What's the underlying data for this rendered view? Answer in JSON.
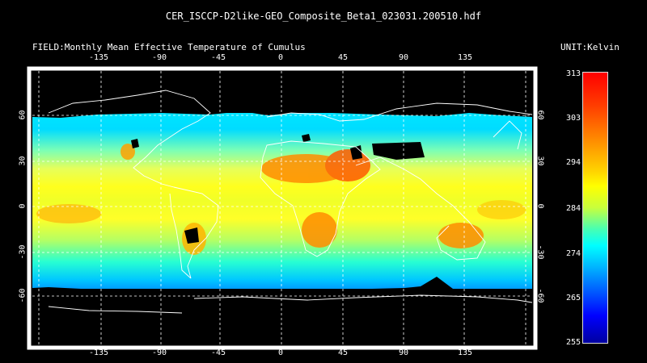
{
  "title": "CER_ISCCP-D2like-GEO_Composite_Beta1_023031.200510.hdf",
  "field_label": "FIELD:Monthly Mean Effective Temperature of Cumulus",
  "unit_label": "UNIT:Kelvin",
  "lon_ticks": [
    "-135",
    "-90",
    "-45",
    "0",
    "45",
    "90",
    "135"
  ],
  "lat_ticks": [
    "60",
    "30",
    "0",
    "-30",
    "-60"
  ],
  "colorbar_ticks": [
    "313",
    "303",
    "294",
    "284",
    "274",
    "265",
    "255"
  ],
  "colors": {
    "background": "#000000",
    "no_data": "#000000",
    "coastline": "#ffffff",
    "grid": "#ffffff"
  },
  "legend": {
    "type": "colorbar",
    "min": 255,
    "max": 313,
    "colormap": [
      "#0000a0",
      "#0000ff",
      "#0050ff",
      "#00b4ff",
      "#00ffff",
      "#46ffb4",
      "#c8ff3c",
      "#ffff00",
      "#ffd700",
      "#ff8c00",
      "#ff3c00",
      "#ff0000"
    ]
  }
}
